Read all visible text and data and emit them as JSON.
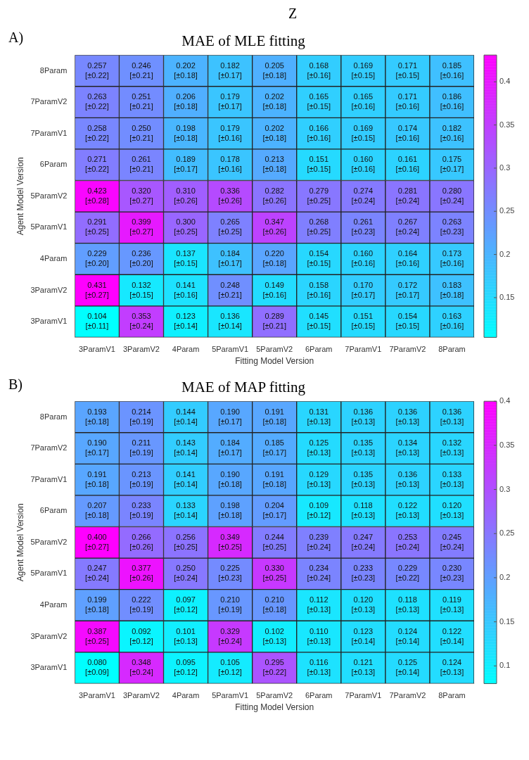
{
  "chart_data": [
    {
      "type": "heatmap",
      "title": "MAE of MLE fitting",
      "annotations": [
        "Z",
        "A)"
      ],
      "xlabel": "Fitting Model Version",
      "ylabel": "Agent Model Version",
      "categories": [
        "3ParamV1",
        "3ParamV2",
        "4Param",
        "5ParamV1",
        "5ParamV2",
        "6Param",
        "7ParamV1",
        "7ParamV2",
        "8Param"
      ],
      "y_categories": [
        "8Param",
        "7ParamV2",
        "7ParamV1",
        "6Param",
        "5ParamV2",
        "5ParamV1",
        "4Param",
        "3ParamV2",
        "3ParamV1"
      ],
      "clim": [
        0.104,
        0.431
      ],
      "cticks": [
        0.15,
        0.2,
        0.25,
        0.3,
        0.35,
        0.4
      ],
      "cells": [
        [
          0.257,
          0.246,
          0.202,
          0.182,
          0.205,
          0.168,
          0.169,
          0.171,
          0.185
        ],
        [
          0.263,
          0.251,
          0.206,
          0.179,
          0.202,
          0.165,
          0.165,
          0.171,
          0.186
        ],
        [
          0.258,
          0.25,
          0.198,
          0.179,
          0.202,
          0.166,
          0.169,
          0.174,
          0.182
        ],
        [
          0.271,
          0.261,
          0.189,
          0.178,
          0.213,
          0.151,
          0.16,
          0.161,
          0.175
        ],
        [
          0.423,
          0.32,
          0.31,
          0.336,
          0.282,
          0.279,
          0.274,
          0.281,
          0.28
        ],
        [
          0.291,
          0.399,
          0.3,
          0.265,
          0.347,
          0.268,
          0.261,
          0.267,
          0.263
        ],
        [
          0.229,
          0.236,
          0.137,
          0.184,
          0.22,
          0.154,
          0.16,
          0.164,
          0.173
        ],
        [
          0.431,
          0.132,
          0.141,
          0.248,
          0.149,
          0.158,
          0.17,
          0.172,
          0.183
        ],
        [
          0.104,
          0.353,
          0.123,
          0.136,
          0.289,
          0.145,
          0.151,
          0.154,
          0.163
        ]
      ],
      "cell_labels": [
        [
          "0.257\n[±0.22]",
          "0.246\n[±0.21]",
          "0.202\n[±0.18]",
          "0.182\n[±0.17]",
          "0.205\n[±0.18]",
          "0.168\n[±0.16]",
          "0.169\n[±0.15]",
          "0.171\n[±0.15]",
          "0.185\n[±0.16]"
        ],
        [
          "0.263\n[±0.22]",
          "0.251\n[±0.21]",
          "0.206\n[±0.18]",
          "0.179\n[±0.17]",
          "0.202\n[±0.18]",
          "0.165\n[±0.15]",
          "0.165\n[±0.16]",
          "0.171\n[±0.16]",
          "0.186\n[±0.16]"
        ],
        [
          "0.258\n[±0.22]",
          "0.250\n[±0.21]",
          "0.198\n[±0.18]",
          "0.179\n[±0.16]",
          "0.202\n[±0.18]",
          "0.166\n[±0.16]",
          "0.169\n[±0.15]",
          "0.174\n[±0.16]",
          "0.182\n[±0.16]"
        ],
        [
          "0.271\n[±0.22]",
          "0.261\n[±0.21]",
          "0.189\n[±0.17]",
          "0.178\n[±0.16]",
          "0.213\n[±0.18]",
          "0.151\n[±0.15]",
          "0.160\n[±0.16]",
          "0.161\n[±0.16]",
          "0.175\n[±0.17]"
        ],
        [
          "0.423\n[±0.28]",
          "0.320\n[±0.27]",
          "0.310\n[±0.26]",
          "0.336\n[±0.26]",
          "0.282\n[±0.26]",
          "0.279\n[±0.25]",
          "0.274\n[±0.24]",
          "0.281\n[±0.24]",
          "0.280\n[±0.24]"
        ],
        [
          "0.291\n[±0.25]",
          "0.399\n[±0.27]",
          "0.300\n[±0.25]",
          "0.265\n[±0.25]",
          "0.347\n[±0.26]",
          "0.268\n[±0.25]",
          "0.261\n[±0.23]",
          "0.267\n[±0.24]",
          "0.263\n[±0.23]"
        ],
        [
          "0.229\n[±0.20]",
          "0.236\n[±0.20]",
          "0.137\n[±0.15]",
          "0.184\n[±0.17]",
          "0.220\n[±0.18]",
          "0.154\n[±0.15]",
          "0.160\n[±0.16]",
          "0.164\n[±0.16]",
          "0.173\n[±0.16]"
        ],
        [
          "0.431\n[±0.27]",
          "0.132\n[±0.15]",
          "0.141\n[±0.16]",
          "0.248\n[±0.21]",
          "0.149\n[±0.16]",
          "0.158\n[±0.16]",
          "0.170\n[±0.17]",
          "0.172\n[±0.17]",
          "0.183\n[±0.18]"
        ],
        [
          "0.104\n[±0.11]",
          "0.353\n[±0.24]",
          "0.123\n[±0.14]",
          "0.136\n[±0.14]",
          "0.289\n[±0.21]",
          "0.145\n[±0.15]",
          "0.151\n[±0.15]",
          "0.154\n[±0.15]",
          "0.163\n[±0.16]"
        ]
      ]
    },
    {
      "type": "heatmap",
      "title": "MAE of MAP fitting",
      "annotations": [
        "B)"
      ],
      "xlabel": "Fitting Model Version",
      "ylabel": "Agent Model Version",
      "categories": [
        "3ParamV1",
        "3ParamV2",
        "4Param",
        "5ParamV1",
        "5ParamV2",
        "6Param",
        "7ParamV1",
        "7ParamV2",
        "8Param"
      ],
      "y_categories": [
        "8Param",
        "7ParamV2",
        "7ParamV1",
        "6Param",
        "5ParamV2",
        "5ParamV1",
        "4Param",
        "3ParamV2",
        "3ParamV1"
      ],
      "clim": [
        0.08,
        0.4
      ],
      "cticks": [
        0.1,
        0.15,
        0.2,
        0.25,
        0.3,
        0.35,
        0.4
      ],
      "cells": [
        [
          0.193,
          0.214,
          0.144,
          0.19,
          0.191,
          0.131,
          0.136,
          0.136,
          0.136
        ],
        [
          0.19,
          0.211,
          0.143,
          0.184,
          0.185,
          0.125,
          0.135,
          0.134,
          0.132
        ],
        [
          0.191,
          0.213,
          0.141,
          0.19,
          0.191,
          0.129,
          0.135,
          0.136,
          0.133
        ],
        [
          0.207,
          0.233,
          0.133,
          0.198,
          0.204,
          0.109,
          0.118,
          0.122,
          0.12
        ],
        [
          0.4,
          0.266,
          0.256,
          0.349,
          0.244,
          0.239,
          0.247,
          0.253,
          0.245
        ],
        [
          0.247,
          0.377,
          0.25,
          0.225,
          0.33,
          0.234,
          0.233,
          0.229,
          0.23
        ],
        [
          0.199,
          0.222,
          0.097,
          0.21,
          0.21,
          0.112,
          0.12,
          0.118,
          0.119
        ],
        [
          0.387,
          0.092,
          0.101,
          0.329,
          0.102,
          0.11,
          0.123,
          0.124,
          0.122
        ],
        [
          0.08,
          0.348,
          0.095,
          0.105,
          0.295,
          0.116,
          0.121,
          0.125,
          0.124
        ]
      ],
      "cell_labels": [
        [
          "0.193\n[±0.18]",
          "0.214\n[±0.19]",
          "0.144\n[±0.14]",
          "0.190\n[±0.17]",
          "0.191\n[±0.18]",
          "0.131\n[±0.13]",
          "0.136\n[±0.13]",
          "0.136\n[±0.13]",
          "0.136\n[±0.13]"
        ],
        [
          "0.190\n[±0.17]",
          "0.211\n[±0.19]",
          "0.143\n[±0.14]",
          "0.184\n[±0.17]",
          "0.185\n[±0.17]",
          "0.125\n[±0.13]",
          "0.135\n[±0.13]",
          "0.134\n[±0.13]",
          "0.132\n[±0.13]"
        ],
        [
          "0.191\n[±0.18]",
          "0.213\n[±0.19]",
          "0.141\n[±0.14]",
          "0.190\n[±0.18]",
          "0.191\n[±0.18]",
          "0.129\n[±0.13]",
          "0.135\n[±0.13]",
          "0.136\n[±0.13]",
          "0.133\n[±0.13]"
        ],
        [
          "0.207\n[±0.18]",
          "0.233\n[±0.19]",
          "0.133\n[±0.14]",
          "0.198\n[±0.18]",
          "0.204\n[±0.17]",
          "0.109\n[±0.12]",
          "0.118\n[±0.13]",
          "0.122\n[±0.13]",
          "0.120\n[±0.13]"
        ],
        [
          "0.400\n[±0.27]",
          "0.266\n[±0.26]",
          "0.256\n[±0.25]",
          "0.349\n[±0.25]",
          "0.244\n[±0.25]",
          "0.239\n[±0.24]",
          "0.247\n[±0.24]",
          "0.253\n[±0.24]",
          "0.245\n[±0.24]"
        ],
        [
          "0.247\n[±0.24]",
          "0.377\n[±0.26]",
          "0.250\n[±0.24]",
          "0.225\n[±0.23]",
          "0.330\n[±0.25]",
          "0.234\n[±0.24]",
          "0.233\n[±0.23]",
          "0.229\n[±0.22]",
          "0.230\n[±0.23]"
        ],
        [
          "0.199\n[±0.18]",
          "0.222\n[±0.19]",
          "0.097\n[±0.12]",
          "0.210\n[±0.19]",
          "0.210\n[±0.18]",
          "0.112\n[±0.13]",
          "0.120\n[±0.13]",
          "0.118\n[±0.13]",
          "0.119\n[±0.13]"
        ],
        [
          "0.387\n[±0.25]",
          "0.092\n[±0.12]",
          "0.101\n[±0.13]",
          "0.329\n[±0.24]",
          "0.102\n[±0.13]",
          "0.110\n[±0.13]",
          "0.123\n[±0.14]",
          "0.124\n[±0.14]",
          "0.122\n[±0.14]"
        ],
        [
          "0.080\n[±0.09]",
          "0.348\n[±0.24]",
          "0.095\n[±0.12]",
          "0.105\n[±0.12]",
          "0.295\n[±0.22]",
          "0.116\n[±0.13]",
          "0.121\n[±0.13]",
          "0.125\n[±0.14]",
          "0.124\n[±0.13]"
        ]
      ]
    }
  ]
}
